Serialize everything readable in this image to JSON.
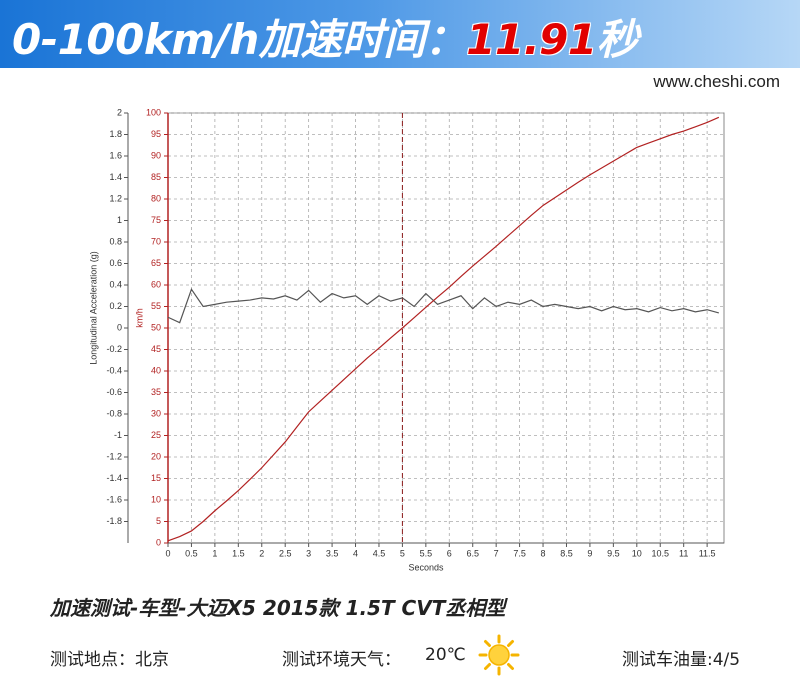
{
  "header": {
    "title": "0-100km/h加速时间：",
    "time": "11.91",
    "unit": "秒",
    "site": "www.cheshi.com"
  },
  "chart_data": {
    "type": "line",
    "x_label": "Seconds",
    "y_label": "Longitudinal Acceleration (g)",
    "y2_label": "km/h",
    "x": [
      0,
      0.25,
      0.5,
      0.75,
      1,
      1.25,
      1.5,
      1.75,
      2,
      2.25,
      2.5,
      2.75,
      3,
      3.25,
      3.5,
      3.75,
      4,
      4.25,
      4.5,
      4.75,
      5,
      5.25,
      5.5,
      5.75,
      6,
      6.25,
      6.5,
      6.75,
      7,
      7.25,
      7.5,
      7.75,
      8,
      8.25,
      8.5,
      8.75,
      9,
      9.25,
      9.5,
      9.75,
      10,
      10.25,
      10.5,
      10.75,
      11,
      11.25,
      11.5,
      11.75
    ],
    "series": [
      {
        "color": "#555555",
        "axis": "y",
        "values": [
          0.1,
          0.05,
          0.36,
          0.2,
          0.22,
          0.24,
          0.25,
          0.26,
          0.28,
          0.27,
          0.3,
          0.26,
          0.35,
          0.24,
          0.32,
          0.28,
          0.3,
          0.22,
          0.3,
          0.25,
          0.28,
          0.2,
          0.32,
          0.22,
          0.26,
          0.3,
          0.18,
          0.28,
          0.2,
          0.24,
          0.22,
          0.26,
          0.2,
          0.22,
          0.2,
          0.18,
          0.2,
          0.16,
          0.2,
          0.17,
          0.18,
          0.15,
          0.19,
          0.16,
          0.18,
          0.15,
          0.17,
          0.14
        ]
      },
      {
        "color": "#b22222",
        "axis": "y2",
        "values": [
          0.5,
          1.5,
          2.8,
          5,
          7.5,
          9.8,
          12.2,
          14.8,
          17.5,
          20.5,
          23.5,
          27,
          30.5,
          33,
          35.5,
          38,
          40.5,
          43,
          45.3,
          47.7,
          50,
          52.4,
          54.8,
          57.2,
          59.5,
          62,
          64.4,
          66.7,
          69,
          71.4,
          73.8,
          76.2,
          78.5,
          80.3,
          82.1,
          83.9,
          85.6,
          87.2,
          88.8,
          90.4,
          92,
          93,
          94,
          95,
          95.8,
          96.8,
          97.8,
          99
        ]
      }
    ],
    "marker_x": 5,
    "xlim": [
      0,
      11.86
    ],
    "xticks": [
      0,
      0.5,
      1,
      1.5,
      2,
      2.5,
      3,
      3.5,
      4,
      4.5,
      5,
      5.5,
      6,
      6.5,
      7,
      7.5,
      8,
      8.5,
      9,
      9.5,
      10,
      10.5,
      11,
      11.5
    ],
    "ylim": [
      -2,
      2
    ],
    "yticks": [
      2,
      1.8,
      1.6,
      1.4,
      1.2,
      1,
      0.8,
      0.6,
      0.4,
      0.2,
      0,
      -0.2,
      -0.4,
      -0.6,
      -0.8,
      -1,
      -1.2,
      -1.4,
      -1.6,
      -1.8
    ],
    "y2lim": [
      0,
      100
    ],
    "y2ticks": [
      0,
      5,
      10,
      15,
      20,
      25,
      30,
      35,
      40,
      45,
      50,
      55,
      60,
      65,
      70,
      75,
      80,
      85,
      90,
      95,
      100
    ],
    "grid": true
  },
  "footer": {
    "title": "加速测试-车型-大迈X5 2015款 1.5T CVT丞相型",
    "location": "测试地点：北京",
    "weather_label": "测试环境天气：",
    "temperature": "20℃",
    "fuel": "测试车油量:4/5"
  }
}
